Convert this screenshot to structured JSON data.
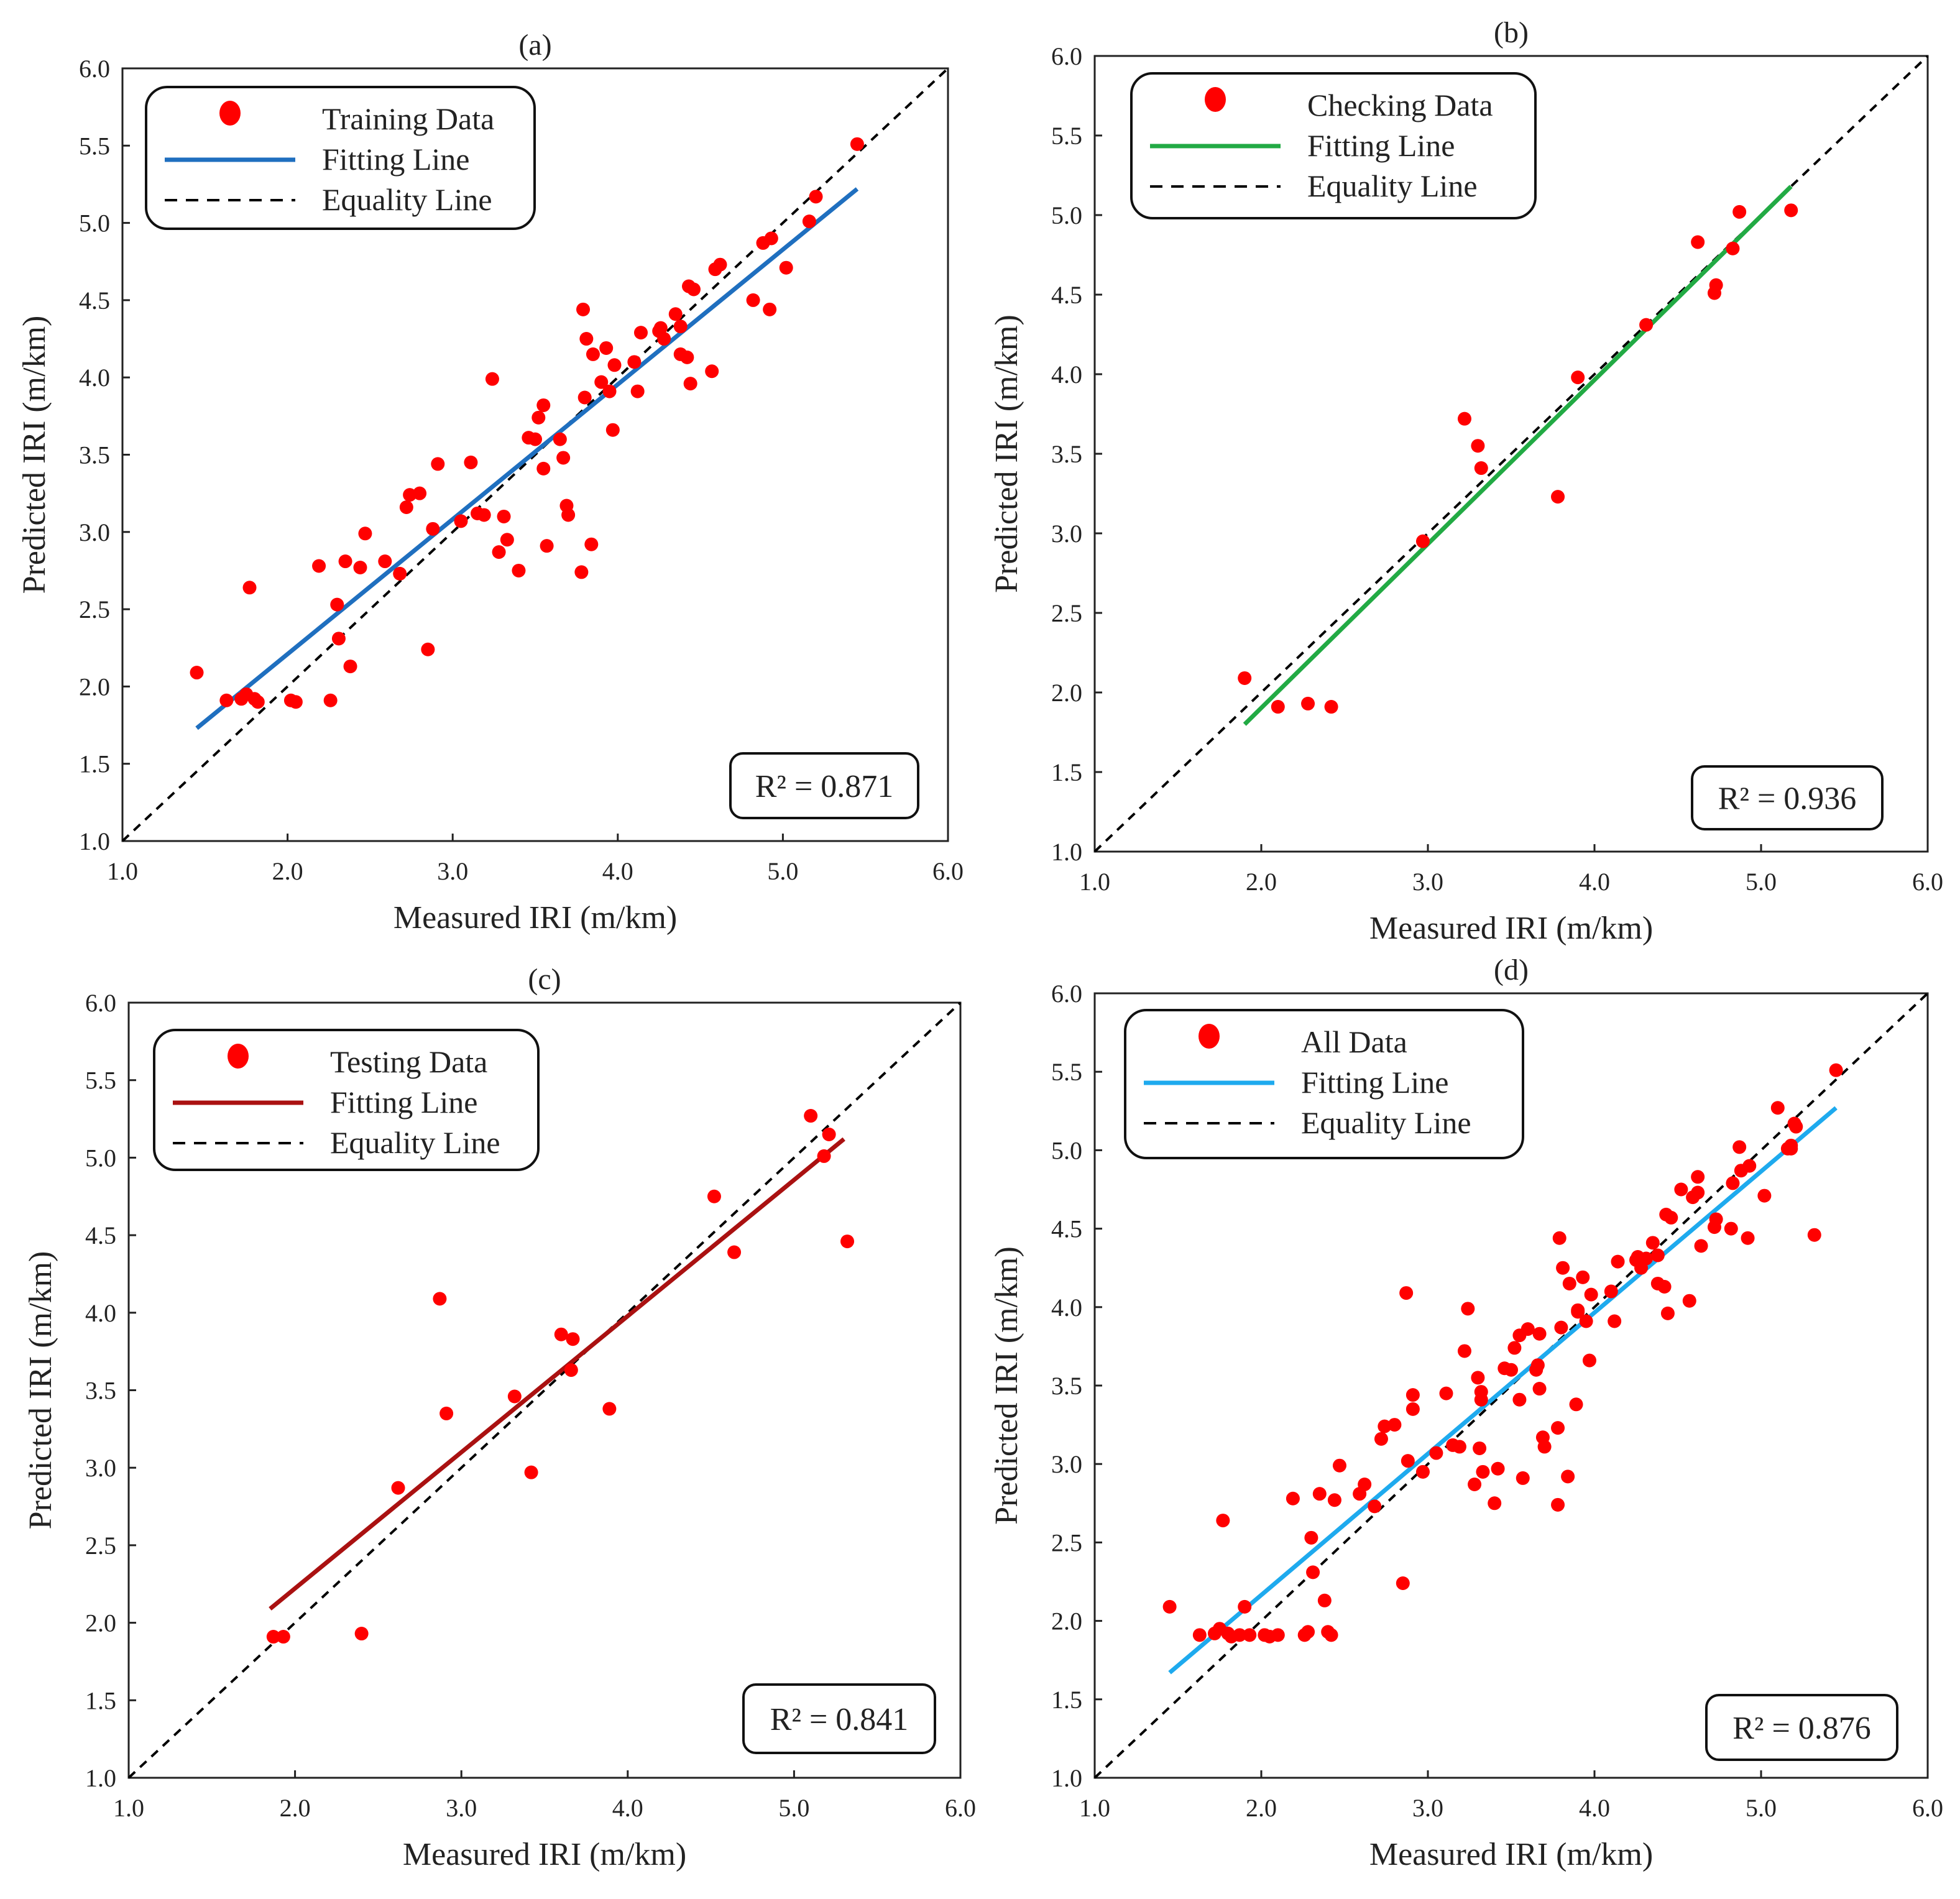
{
  "colors": {
    "points": "#ff0000",
    "equality": "#000000",
    "axis": "#222222"
  },
  "chart_data": [
    {
      "type": "scatter",
      "panel_label": "(a)",
      "xlabel": "Measured IRI (m/km)",
      "ylabel": "Predicted IRI (m/km)",
      "xlim": [
        1.0,
        6.0
      ],
      "ylim": [
        1.0,
        6.0
      ],
      "ticks": [
        "1.0",
        "1.5",
        "2.0",
        "2.5",
        "3.0",
        "3.5",
        "4.0",
        "4.5",
        "5.0",
        "5.5",
        "6.0"
      ],
      "xticks": [
        "1.0",
        "2.0",
        "3.0",
        "4.0",
        "5.0",
        "6.0"
      ],
      "legend": [
        "Training Data",
        "Fitting Line",
        "Equality Line"
      ],
      "fit_color": "#1f6fbf",
      "fit": [
        [
          1.45,
          1.73
        ],
        [
          5.45,
          5.22
        ]
      ],
      "r2": "R² = 0.871",
      "points": [
        [
          1.45,
          2.09
        ],
        [
          1.63,
          1.91
        ],
        [
          1.72,
          1.92
        ],
        [
          1.75,
          1.95
        ],
        [
          1.77,
          2.64
        ],
        [
          1.8,
          1.92
        ],
        [
          1.82,
          1.9
        ],
        [
          2.02,
          1.91
        ],
        [
          2.05,
          1.9
        ],
        [
          2.19,
          2.78
        ],
        [
          2.26,
          1.91
        ],
        [
          2.3,
          2.53
        ],
        [
          2.31,
          2.31
        ],
        [
          2.35,
          2.81
        ],
        [
          2.38,
          2.13
        ],
        [
          2.44,
          2.77
        ],
        [
          2.47,
          2.99
        ],
        [
          2.59,
          2.81
        ],
        [
          2.68,
          2.73
        ],
        [
          2.72,
          3.16
        ],
        [
          2.74,
          3.24
        ],
        [
          2.8,
          3.25
        ],
        [
          2.85,
          2.24
        ],
        [
          2.88,
          3.02
        ],
        [
          2.91,
          3.44
        ],
        [
          3.05,
          3.07
        ],
        [
          3.11,
          3.45
        ],
        [
          3.15,
          3.12
        ],
        [
          3.19,
          3.11
        ],
        [
          3.24,
          3.99
        ],
        [
          3.28,
          2.87
        ],
        [
          3.31,
          3.1
        ],
        [
          3.33,
          2.95
        ],
        [
          3.4,
          2.75
        ],
        [
          3.46,
          3.61
        ],
        [
          3.5,
          3.6
        ],
        [
          3.52,
          3.74
        ],
        [
          3.55,
          3.82
        ],
        [
          3.55,
          3.41
        ],
        [
          3.57,
          2.91
        ],
        [
          3.65,
          3.6
        ],
        [
          3.67,
          3.48
        ],
        [
          3.69,
          3.17
        ],
        [
          3.7,
          3.11
        ],
        [
          3.78,
          2.74
        ],
        [
          3.79,
          4.44
        ],
        [
          3.8,
          3.87
        ],
        [
          3.81,
          4.25
        ],
        [
          3.84,
          2.92
        ],
        [
          3.85,
          4.15
        ],
        [
          3.9,
          3.97
        ],
        [
          3.93,
          4.19
        ],
        [
          3.95,
          3.91
        ],
        [
          3.97,
          3.66
        ],
        [
          3.98,
          4.08
        ],
        [
          4.1,
          4.1
        ],
        [
          4.12,
          3.91
        ],
        [
          4.14,
          4.29
        ],
        [
          4.25,
          4.3
        ],
        [
          4.26,
          4.32
        ],
        [
          4.28,
          4.25
        ],
        [
          4.35,
          4.41
        ],
        [
          4.38,
          4.15
        ],
        [
          4.38,
          4.33
        ],
        [
          4.42,
          4.13
        ],
        [
          4.43,
          4.59
        ],
        [
          4.44,
          3.96
        ],
        [
          4.46,
          4.57
        ],
        [
          4.57,
          4.04
        ],
        [
          4.59,
          4.7
        ],
        [
          4.62,
          4.73
        ],
        [
          4.82,
          4.5
        ],
        [
          4.88,
          4.87
        ],
        [
          4.92,
          4.44
        ],
        [
          4.93,
          4.9
        ],
        [
          5.02,
          4.71
        ],
        [
          5.16,
          5.01
        ],
        [
          5.2,
          5.17
        ],
        [
          5.45,
          5.51
        ]
      ]
    },
    {
      "type": "scatter",
      "panel_label": "(b)",
      "xlabel": "Measured IRI (m/km)",
      "ylabel": "Predicted IRI (m/km)",
      "xlim": [
        1.0,
        6.0
      ],
      "ylim": [
        1.0,
        6.0
      ],
      "ticks": [
        "1.0",
        "1.5",
        "2.0",
        "2.5",
        "3.0",
        "3.5",
        "4.0",
        "4.5",
        "5.0",
        "5.5",
        "6.0"
      ],
      "xticks": [
        "1.0",
        "2.0",
        "3.0",
        "4.0",
        "5.0",
        "6.0"
      ],
      "legend": [
        "Checking Data",
        "Fitting Line",
        "Equality Line"
      ],
      "fit_color": "#22aa44",
      "fit": [
        [
          1.9,
          1.8
        ],
        [
          5.18,
          5.18
        ]
      ],
      "r2": "R² = 0.936",
      "points": [
        [
          1.9,
          2.09
        ],
        [
          2.1,
          1.91
        ],
        [
          2.28,
          1.93
        ],
        [
          2.42,
          1.91
        ],
        [
          2.97,
          2.95
        ],
        [
          3.22,
          3.72
        ],
        [
          3.3,
          3.55
        ],
        [
          3.32,
          3.41
        ],
        [
          3.78,
          3.23
        ],
        [
          3.9,
          3.98
        ],
        [
          4.31,
          4.31
        ],
        [
          4.62,
          4.83
        ],
        [
          4.72,
          4.51
        ],
        [
          4.73,
          4.56
        ],
        [
          4.83,
          4.79
        ],
        [
          4.87,
          5.02
        ],
        [
          5.18,
          5.03
        ]
      ]
    },
    {
      "type": "scatter",
      "panel_label": "(c)",
      "xlabel": "Measured IRI (m/km)",
      "ylabel": "Predicted IRI (m/km)",
      "xlim": [
        1.0,
        6.0
      ],
      "ylim": [
        1.0,
        6.0
      ],
      "ticks": [
        "1.0",
        "1.5",
        "2.0",
        "2.5",
        "3.0",
        "3.5",
        "4.0",
        "4.5",
        "5.0",
        "5.5",
        "6.0"
      ],
      "xticks": [
        "1.0",
        "2.0",
        "3.0",
        "4.0",
        "5.0",
        "6.0"
      ],
      "legend": [
        "Testing Data",
        "Fitting Line",
        "Equality Line"
      ],
      "fit_color": "#aa1111",
      "fit": [
        [
          1.85,
          2.09
        ],
        [
          5.3,
          5.12
        ]
      ],
      "r2": "R² = 0.841",
      "points": [
        [
          1.87,
          1.91
        ],
        [
          1.93,
          1.91
        ],
        [
          2.4,
          1.93
        ],
        [
          2.62,
          2.87
        ],
        [
          2.87,
          4.09
        ],
        [
          2.91,
          3.35
        ],
        [
          3.32,
          3.46
        ],
        [
          3.42,
          2.97
        ],
        [
          3.6,
          3.86
        ],
        [
          3.66,
          3.63
        ],
        [
          3.67,
          3.83
        ],
        [
          3.89,
          3.38
        ],
        [
          4.52,
          4.75
        ],
        [
          4.64,
          4.39
        ],
        [
          5.1,
          5.27
        ],
        [
          5.18,
          5.01
        ],
        [
          5.21,
          5.15
        ],
        [
          5.32,
          4.46
        ]
      ]
    },
    {
      "type": "scatter",
      "panel_label": "(d)",
      "xlabel": "Measured IRI (m/km)",
      "ylabel": "Predicted IRI (m/km)",
      "xlim": [
        1.0,
        6.0
      ],
      "ylim": [
        1.0,
        6.0
      ],
      "ticks": [
        "1.0",
        "1.5",
        "2.0",
        "2.5",
        "3.0",
        "3.5",
        "4.0",
        "4.5",
        "5.0",
        "5.5",
        "6.0"
      ],
      "xticks": [
        "1.0",
        "2.0",
        "3.0",
        "4.0",
        "5.0",
        "6.0"
      ],
      "legend": [
        "All Data",
        "Fitting Line",
        "Equality Line"
      ],
      "fit_color": "#1eaaee",
      "fit": [
        [
          1.45,
          1.67
        ],
        [
          5.45,
          5.27
        ]
      ],
      "r2": "R² = 0.876",
      "points": [
        [
          1.45,
          2.09
        ],
        [
          1.63,
          1.91
        ],
        [
          1.72,
          1.92
        ],
        [
          1.75,
          1.95
        ],
        [
          1.77,
          2.64
        ],
        [
          1.8,
          1.92
        ],
        [
          1.82,
          1.9
        ],
        [
          2.02,
          1.91
        ],
        [
          2.05,
          1.9
        ],
        [
          2.19,
          2.78
        ],
        [
          2.26,
          1.91
        ],
        [
          2.3,
          2.53
        ],
        [
          2.31,
          2.31
        ],
        [
          2.35,
          2.81
        ],
        [
          2.38,
          2.13
        ],
        [
          2.44,
          2.77
        ],
        [
          2.47,
          2.99
        ],
        [
          2.59,
          2.81
        ],
        [
          2.68,
          2.73
        ],
        [
          2.72,
          3.16
        ],
        [
          2.74,
          3.24
        ],
        [
          2.8,
          3.25
        ],
        [
          2.85,
          2.24
        ],
        [
          2.88,
          3.02
        ],
        [
          2.91,
          3.44
        ],
        [
          3.05,
          3.07
        ],
        [
          3.11,
          3.45
        ],
        [
          3.15,
          3.12
        ],
        [
          3.19,
          3.11
        ],
        [
          3.24,
          3.99
        ],
        [
          3.28,
          2.87
        ],
        [
          3.31,
          3.1
        ],
        [
          3.33,
          2.95
        ],
        [
          3.4,
          2.75
        ],
        [
          3.46,
          3.61
        ],
        [
          3.5,
          3.6
        ],
        [
          3.52,
          3.74
        ],
        [
          3.55,
          3.82
        ],
        [
          3.55,
          3.41
        ],
        [
          3.57,
          2.91
        ],
        [
          3.65,
          3.6
        ],
        [
          3.67,
          3.48
        ],
        [
          3.69,
          3.17
        ],
        [
          3.7,
          3.11
        ],
        [
          3.78,
          2.74
        ],
        [
          3.79,
          4.44
        ],
        [
          3.8,
          3.87
        ],
        [
          3.81,
          4.25
        ],
        [
          3.84,
          2.92
        ],
        [
          3.85,
          4.15
        ],
        [
          3.9,
          3.97
        ],
        [
          3.93,
          4.19
        ],
        [
          3.95,
          3.91
        ],
        [
          3.97,
          3.66
        ],
        [
          3.98,
          4.08
        ],
        [
          4.1,
          4.1
        ],
        [
          4.12,
          3.91
        ],
        [
          4.14,
          4.29
        ],
        [
          4.25,
          4.3
        ],
        [
          4.26,
          4.32
        ],
        [
          4.28,
          4.25
        ],
        [
          4.35,
          4.41
        ],
        [
          4.38,
          4.15
        ],
        [
          4.38,
          4.33
        ],
        [
          4.42,
          4.13
        ],
        [
          4.43,
          4.59
        ],
        [
          4.44,
          3.96
        ],
        [
          4.46,
          4.57
        ],
        [
          4.57,
          4.04
        ],
        [
          4.59,
          4.7
        ],
        [
          4.62,
          4.73
        ],
        [
          4.82,
          4.5
        ],
        [
          4.88,
          4.87
        ],
        [
          4.92,
          4.44
        ],
        [
          4.93,
          4.9
        ],
        [
          5.02,
          4.71
        ],
        [
          5.16,
          5.01
        ],
        [
          5.2,
          5.17
        ],
        [
          5.45,
          5.51
        ],
        [
          1.9,
          2.09
        ],
        [
          2.1,
          1.91
        ],
        [
          2.28,
          1.93
        ],
        [
          2.42,
          1.91
        ],
        [
          2.97,
          2.95
        ],
        [
          3.22,
          3.72
        ],
        [
          3.3,
          3.55
        ],
        [
          3.32,
          3.41
        ],
        [
          3.78,
          3.23
        ],
        [
          3.9,
          3.98
        ],
        [
          4.31,
          4.31
        ],
        [
          4.62,
          4.83
        ],
        [
          4.72,
          4.51
        ],
        [
          4.73,
          4.56
        ],
        [
          4.83,
          4.79
        ],
        [
          4.87,
          5.02
        ],
        [
          5.18,
          5.03
        ],
        [
          1.87,
          1.91
        ],
        [
          1.93,
          1.91
        ],
        [
          2.4,
          1.93
        ],
        [
          2.62,
          2.87
        ],
        [
          2.87,
          4.09
        ],
        [
          2.91,
          3.35
        ],
        [
          3.32,
          3.46
        ],
        [
          3.42,
          2.97
        ],
        [
          3.6,
          3.86
        ],
        [
          3.66,
          3.63
        ],
        [
          3.67,
          3.83
        ],
        [
          3.89,
          3.38
        ],
        [
          4.52,
          4.75
        ],
        [
          4.64,
          4.39
        ],
        [
          5.1,
          5.27
        ],
        [
          5.18,
          5.01
        ],
        [
          5.21,
          5.15
        ],
        [
          5.32,
          4.46
        ]
      ]
    }
  ]
}
